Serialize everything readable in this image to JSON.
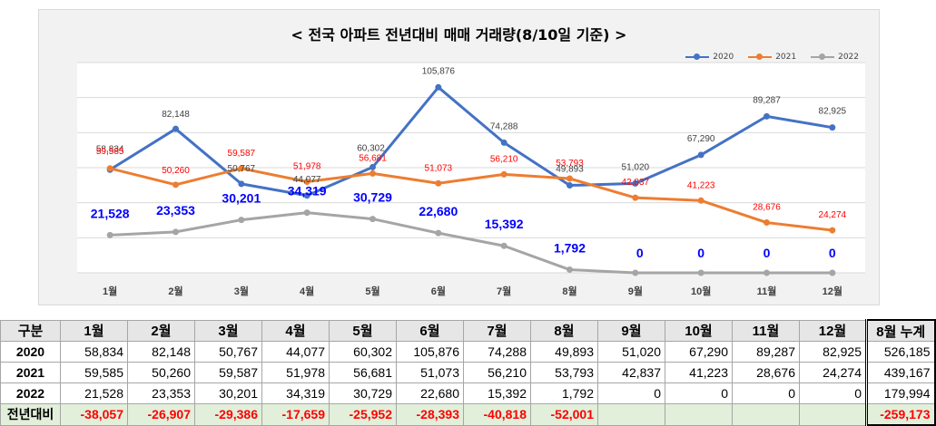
{
  "chart_data": {
    "type": "line",
    "title": "< 전국 아파트 전년대비 매매 거래량(8/10일 기준) >",
    "categories": [
      "1월",
      "2월",
      "3월",
      "4월",
      "5월",
      "6월",
      "7월",
      "8월",
      "9월",
      "10월",
      "11월",
      "12월"
    ],
    "series": [
      {
        "name": "2020",
        "color": "#4472c4",
        "values": [
          58834,
          82148,
          50767,
          44077,
          60302,
          105876,
          74288,
          49893,
          51020,
          67290,
          89287,
          82925
        ],
        "labels": [
          "58,834",
          "82,148",
          "50,767",
          "44,077",
          "60,302",
          "105,876",
          "74,288",
          "49,893",
          "51,020",
          "67,290",
          "89,287",
          "82,925"
        ]
      },
      {
        "name": "2021",
        "color": "#ed7d31",
        "values": [
          59585,
          50260,
          59587,
          51978,
          56681,
          51073,
          56210,
          53793,
          42837,
          41223,
          28676,
          24274
        ],
        "labels": [
          "59,585",
          "50,260",
          "59,587",
          "51,978",
          "56,681",
          "51,073",
          "56,210",
          "53,793",
          "42,837",
          "41,223",
          "28,676",
          "24,274"
        ]
      },
      {
        "name": "2022",
        "color": "#a5a5a5",
        "values": [
          21528,
          23353,
          30201,
          34319,
          30729,
          22680,
          15392,
          1792,
          0,
          0,
          0,
          0
        ],
        "labels": [
          "21,528",
          "23,353",
          "30,201",
          "34,319",
          "30,729",
          "22,680",
          "15,392",
          "1,792",
          "0",
          "0",
          "0",
          "0"
        ]
      }
    ],
    "ylim": [
      0,
      120000
    ],
    "grid": true,
    "legend": "top-right",
    "label_colors": {
      "2020": "#404040",
      "2021": "#ff0000",
      "2022": "#0000ff"
    }
  },
  "table": {
    "headers": [
      "구분",
      "1월",
      "2월",
      "3월",
      "4월",
      "5월",
      "6월",
      "7월",
      "8월",
      "9월",
      "10월",
      "11월",
      "12월",
      "8월 누계"
    ],
    "rows": [
      {
        "label": "2020",
        "cells": [
          "58,834",
          "82,148",
          "50,767",
          "44,077",
          "60,302",
          "105,876",
          "74,288",
          "49,893",
          "51,020",
          "67,290",
          "89,287",
          "82,925",
          "526,185"
        ]
      },
      {
        "label": "2021",
        "cells": [
          "59,585",
          "50,260",
          "59,587",
          "51,978",
          "56,681",
          "51,073",
          "56,210",
          "53,793",
          "42,837",
          "41,223",
          "28,676",
          "24,274",
          "439,167"
        ]
      },
      {
        "label": "2022",
        "cells": [
          "21,528",
          "23,353",
          "30,201",
          "34,319",
          "30,729",
          "22,680",
          "15,392",
          "1,792",
          "0",
          "0",
          "0",
          "0",
          "179,994"
        ]
      },
      {
        "label": "전년대비",
        "cells": [
          "-38,057",
          "-26,907",
          "-29,386",
          "-17,659",
          "-25,952",
          "-28,393",
          "-40,818",
          "-52,001",
          "",
          "",
          "",
          "",
          "-259,173"
        ]
      }
    ]
  }
}
